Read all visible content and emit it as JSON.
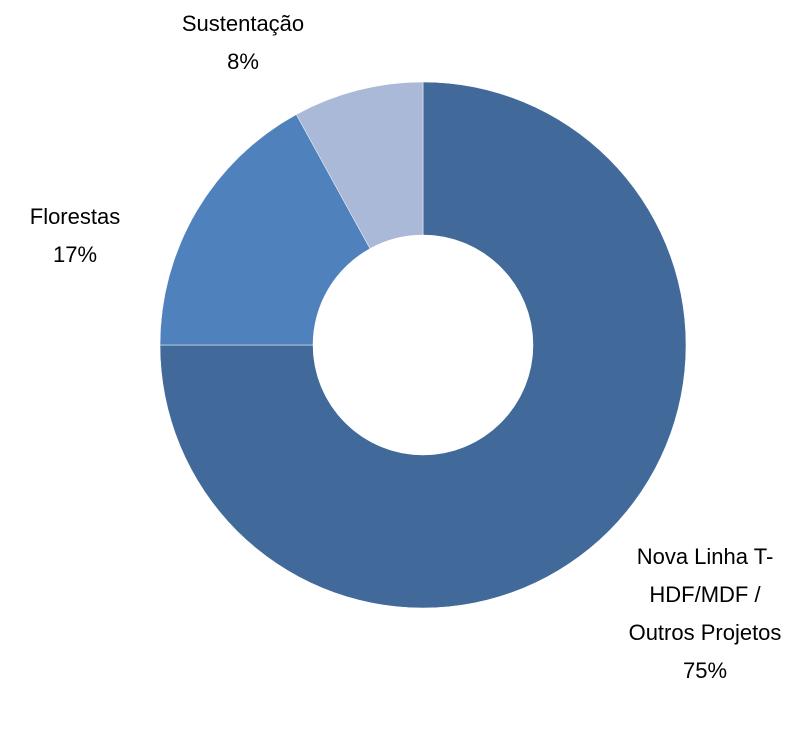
{
  "chart_data": {
    "type": "donut",
    "categories": [
      "Nova Linha T-HDF/MDF / Outros Projetos",
      "Florestas",
      "Sustentação"
    ],
    "values": [
      75,
      17,
      8
    ],
    "value_labels": [
      "75%",
      "17%",
      "8%"
    ],
    "colors": [
      "#416a9b",
      "#4f81bd",
      "#a9b9d7"
    ]
  }
}
